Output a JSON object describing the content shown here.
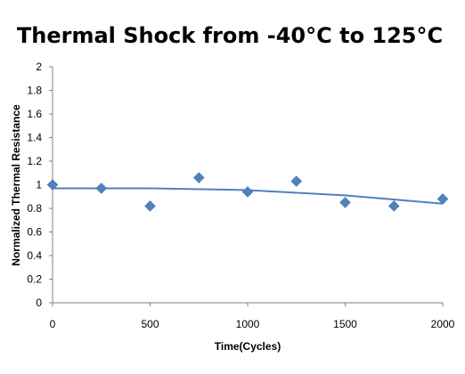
{
  "chart_data": {
    "type": "scatter",
    "title": "Thermal Shock from -40°C to 125°C",
    "xlabel": "Time(Cycles)",
    "ylabel": "Normalized Thermal Resistance",
    "xlim": [
      0,
      2000
    ],
    "ylim": [
      0,
      2
    ],
    "x_ticks": [
      "0",
      "500",
      "1000",
      "1500",
      "2000"
    ],
    "y_ticks": [
      "0",
      "0.2",
      "0.4",
      "0.6",
      "0.8",
      "1",
      "1.2",
      "1.4",
      "1.6",
      "1.8",
      "2"
    ],
    "grid": false,
    "legend": "none",
    "series": [
      {
        "marker": "diamond",
        "color": "#4f81bd",
        "points": [
          {
            "x": 0,
            "y": 1.0
          },
          {
            "x": 250,
            "y": 0.97
          },
          {
            "x": 500,
            "y": 0.82
          },
          {
            "x": 750,
            "y": 1.06
          },
          {
            "x": 1000,
            "y": 0.94
          },
          {
            "x": 1250,
            "y": 1.03
          },
          {
            "x": 1500,
            "y": 0.85
          },
          {
            "x": 1750,
            "y": 0.82
          },
          {
            "x": 2000,
            "y": 0.88
          }
        ]
      }
    ],
    "trendline": {
      "type": "polynomial",
      "color": "#4f81bd",
      "points": [
        {
          "x": 0,
          "y": 0.97
        },
        {
          "x": 500,
          "y": 0.97
        },
        {
          "x": 1000,
          "y": 0.955
        },
        {
          "x": 1500,
          "y": 0.91
        },
        {
          "x": 2000,
          "y": 0.84
        }
      ]
    }
  }
}
